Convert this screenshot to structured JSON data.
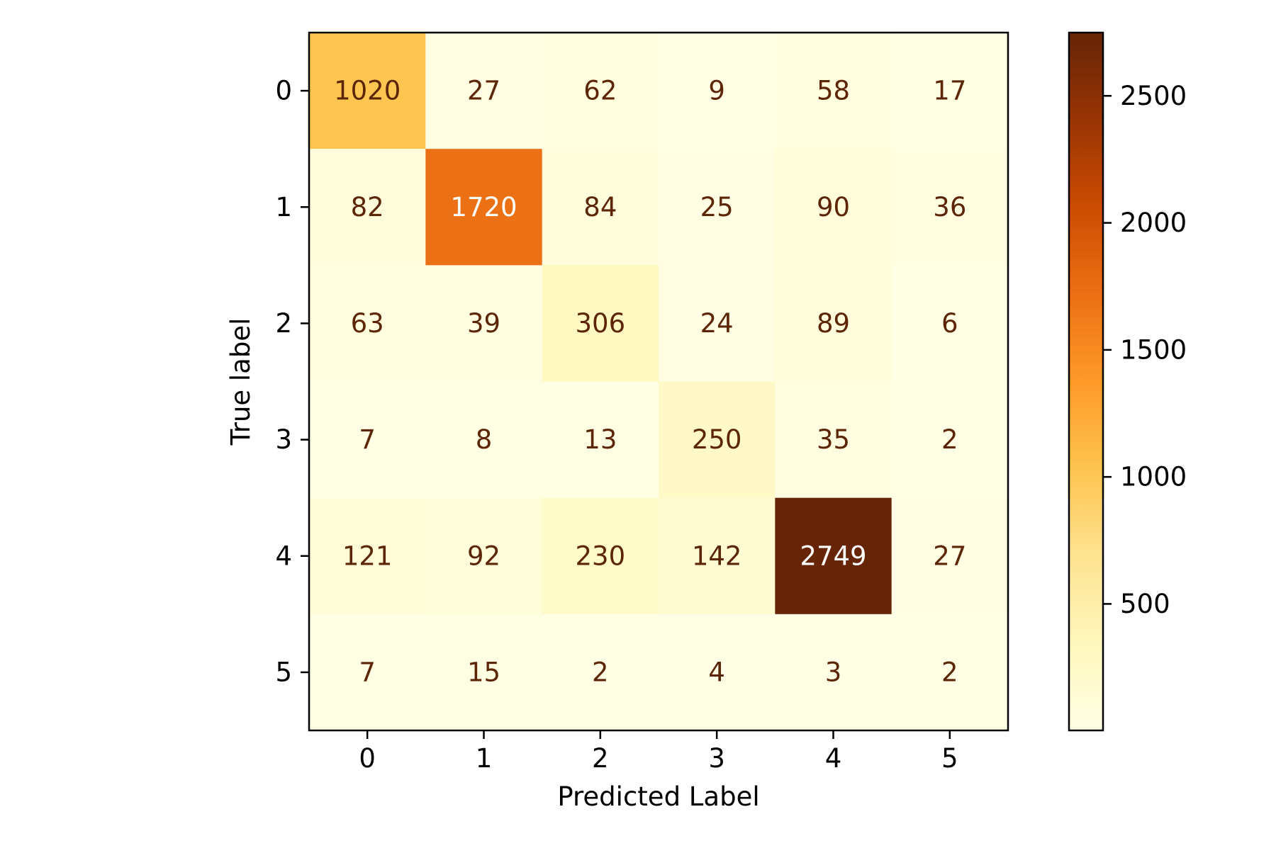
{
  "chart_data": {
    "type": "heatmap",
    "title": "",
    "xlabel": "Predicted Label",
    "ylabel": "True label",
    "x_categories": [
      "0",
      "1",
      "2",
      "3",
      "4",
      "5"
    ],
    "y_categories": [
      "0",
      "1",
      "2",
      "3",
      "4",
      "5"
    ],
    "values": [
      [
        1020,
        27,
        62,
        9,
        58,
        17
      ],
      [
        82,
        1720,
        84,
        25,
        90,
        36
      ],
      [
        63,
        39,
        306,
        24,
        89,
        6
      ],
      [
        7,
        8,
        13,
        250,
        35,
        2
      ],
      [
        121,
        92,
        230,
        142,
        2749,
        27
      ],
      [
        7,
        15,
        2,
        4,
        3,
        2
      ]
    ],
    "colormap": "YlOrBr",
    "vmin": 2,
    "vmax": 2749,
    "colorbar": {
      "ticks": [
        500,
        1000,
        1500,
        2000,
        2500
      ],
      "tick_labels": [
        "500",
        "1000",
        "1500",
        "2000",
        "2500"
      ]
    },
    "colors": {
      "text_dark": "#5c2606",
      "text_light": "#ffffff",
      "axis": "#000000"
    }
  }
}
